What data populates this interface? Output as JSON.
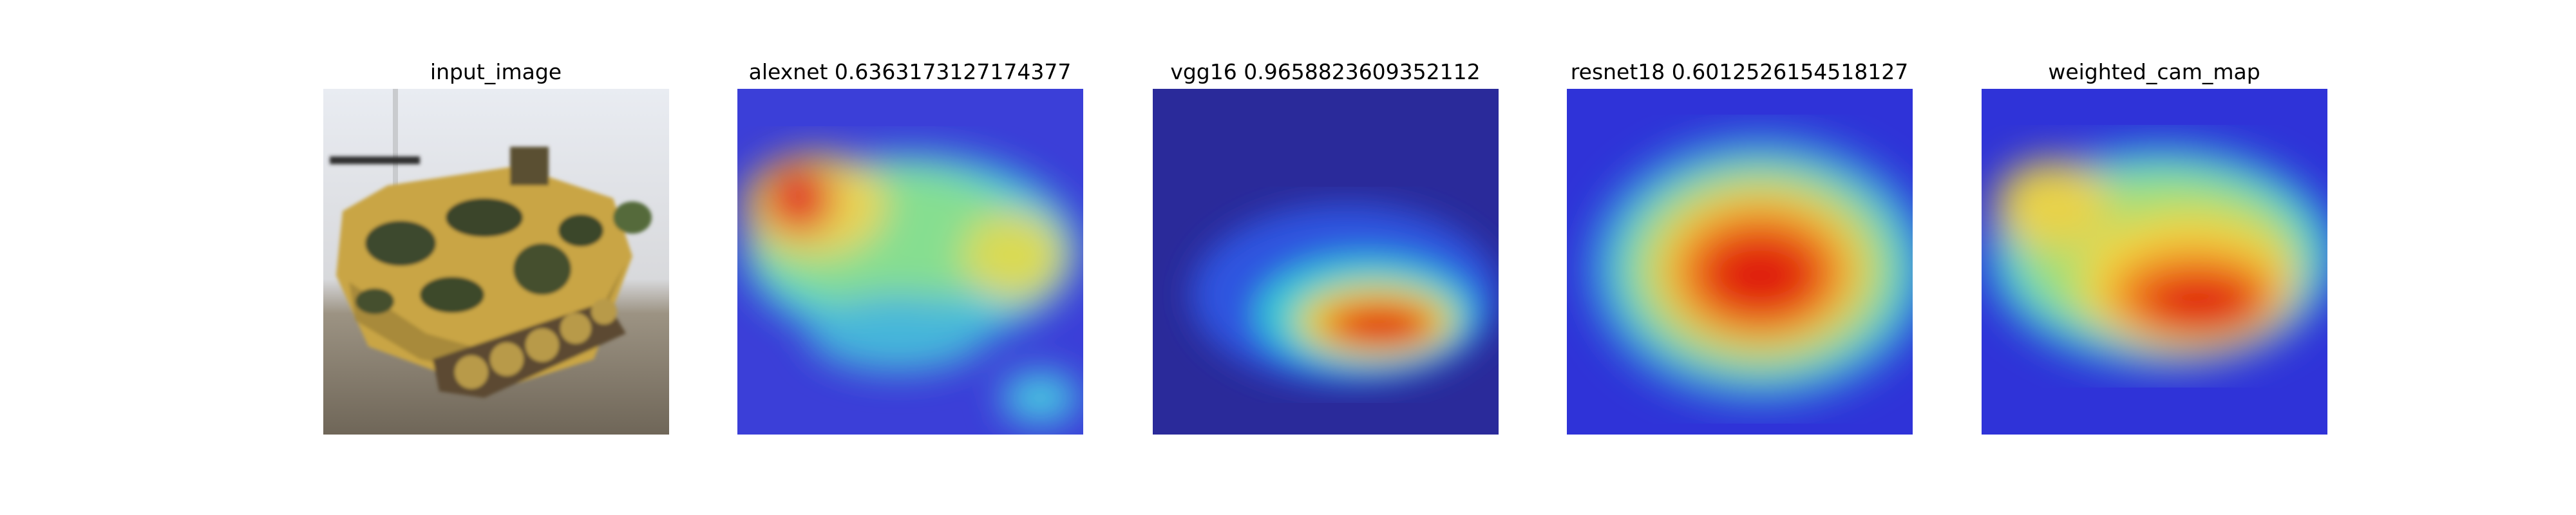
{
  "panels": [
    {
      "title": "input_image",
      "kind": "photo"
    },
    {
      "title": "alexnet 0.6363173127174377",
      "kind": "heatmap"
    },
    {
      "title": "vgg16 0.9658823609352112",
      "kind": "heatmap"
    },
    {
      "title": "resnet18 0.6012526154518127",
      "kind": "heatmap"
    },
    {
      "title": "weighted_cam_map",
      "kind": "heatmap"
    }
  ],
  "colors": {
    "background": "#ffffff",
    "heat_low": "#2b2bd8",
    "heat_mid": "#33d6c0",
    "heat_high": "#e01a10"
  }
}
